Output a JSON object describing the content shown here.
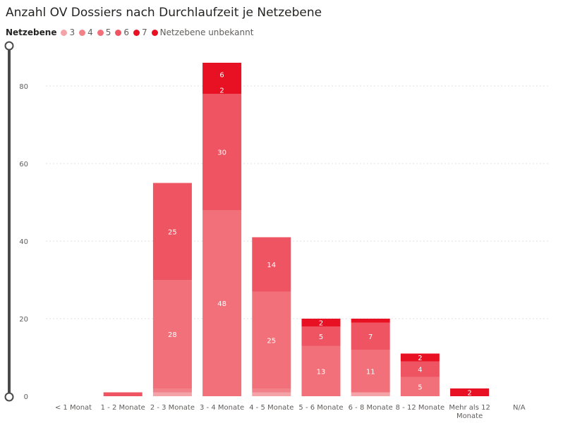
{
  "title": "Anzahl OV Dossiers nach Durchlaufzeit je Netzebene",
  "legend": {
    "title": "Netzebene",
    "items": [
      {
        "label": "3",
        "color": "#f4a3a8"
      },
      {
        "label": "4",
        "color": "#f2828a"
      },
      {
        "label": "5",
        "color": "#f27079"
      },
      {
        "label": "6",
        "color": "#ef5462"
      },
      {
        "label": "7",
        "color": "#e81123"
      },
      {
        "label": "Netzebene unbekannt",
        "color": "#e81123"
      }
    ]
  },
  "chart_data": {
    "type": "bar",
    "stacked": true,
    "title": "Anzahl OV Dossiers nach Durchlaufzeit je Netzebene",
    "xlabel": "",
    "ylabel": "",
    "ylim": [
      0,
      88
    ],
    "yticks": [
      0,
      20,
      40,
      60,
      80
    ],
    "grid": true,
    "legend_position": "top-left",
    "categories": [
      "< 1 Monat",
      "1 - 2 Monate",
      "2 - 3 Monate",
      "3 - 4 Monate",
      "4 - 5 Monate",
      "5 - 6 Monate",
      "6 - 8 Monate",
      "8 - 12 Monate",
      "Mehr als 12 Monate",
      "N/A"
    ],
    "series": [
      {
        "name": "3",
        "color": "#f4a3a8",
        "values": [
          0,
          0,
          1,
          0,
          1,
          0,
          1,
          0,
          0,
          0
        ]
      },
      {
        "name": "4",
        "color": "#f2828a",
        "values": [
          0,
          0,
          1,
          0,
          1,
          0,
          0,
          0,
          0,
          0
        ]
      },
      {
        "name": "5",
        "color": "#f27079",
        "values": [
          0,
          0,
          28,
          48,
          25,
          13,
          11,
          5,
          0,
          0
        ]
      },
      {
        "name": "6",
        "color": "#ef5462",
        "values": [
          0,
          1,
          25,
          30,
          14,
          5,
          7,
          4,
          0,
          0
        ]
      },
      {
        "name": "7",
        "color": "#e81123",
        "values": [
          0,
          0,
          0,
          2,
          0,
          0,
          1,
          0,
          0,
          0
        ]
      },
      {
        "name": "Netzebene unbekannt",
        "color": "#e81123",
        "values": [
          0,
          0,
          0,
          6,
          0,
          2,
          0,
          2,
          2,
          0
        ]
      }
    ],
    "data_labels": [
      {
        "category": "2 - 3 Monate",
        "series": "5",
        "text": "28"
      },
      {
        "category": "2 - 3 Monate",
        "series": "6",
        "text": "25"
      },
      {
        "category": "3 - 4 Monate",
        "series": "5",
        "text": "48"
      },
      {
        "category": "3 - 4 Monate",
        "series": "6",
        "text": "30"
      },
      {
        "category": "3 - 4 Monate",
        "series": "7",
        "text": "2"
      },
      {
        "category": "3 - 4 Monate",
        "series": "Netzebene unbekannt",
        "text": "6"
      },
      {
        "category": "4 - 5 Monate",
        "series": "5",
        "text": "25"
      },
      {
        "category": "4 - 5 Monate",
        "series": "6",
        "text": "14"
      },
      {
        "category": "5 - 6 Monate",
        "series": "5",
        "text": "13"
      },
      {
        "category": "5 - 6 Monate",
        "series": "6",
        "text": "5"
      },
      {
        "category": "5 - 6 Monate",
        "series": "Netzebene unbekannt",
        "text": "2"
      },
      {
        "category": "6 - 8 Monate",
        "series": "5",
        "text": "11"
      },
      {
        "category": "6 - 8 Monate",
        "series": "6",
        "text": "7"
      },
      {
        "category": "8 - 12 Monate",
        "series": "5",
        "text": "5"
      },
      {
        "category": "8 - 12 Monate",
        "series": "6",
        "text": "4"
      },
      {
        "category": "8 - 12 Monate",
        "series": "Netzebene unbekannt",
        "text": "2"
      },
      {
        "category": "Mehr als 12 Monate",
        "series": "Netzebene unbekannt",
        "text": "2"
      }
    ]
  }
}
